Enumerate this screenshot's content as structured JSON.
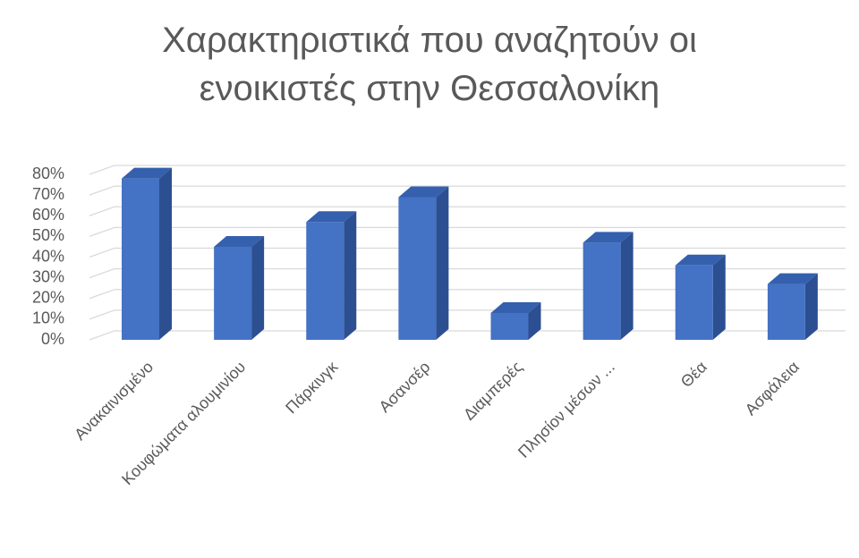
{
  "chart_data": {
    "type": "bar3d",
    "title": "Χαρακτηριστικά που αναζητούν οι ενοικιστές στην Θεσσαλονίκη",
    "categories": [
      "Ανακαινισμένο",
      "Κουφώματα αλουμινίου",
      "Πάρκινγκ",
      "Ασανσέρ",
      "Διαμπερές",
      "Πλησίον μέσων ...",
      "Θέα",
      "Ασφάλεια"
    ],
    "values": [
      78,
      45,
      57,
      69,
      13,
      47,
      36,
      27
    ],
    "color": "#4472c4",
    "ylim": [
      0,
      80
    ],
    "yticks": [
      {
        "value": 0,
        "label": "0%"
      },
      {
        "value": 10,
        "label": "10%"
      },
      {
        "value": 20,
        "label": "20%"
      },
      {
        "value": 30,
        "label": "30%"
      },
      {
        "value": 40,
        "label": "40%"
      },
      {
        "value": 50,
        "label": "50%"
      },
      {
        "value": 60,
        "label": "60%"
      },
      {
        "value": 70,
        "label": "70%"
      },
      {
        "value": 80,
        "label": "80%"
      }
    ],
    "grid": true
  }
}
